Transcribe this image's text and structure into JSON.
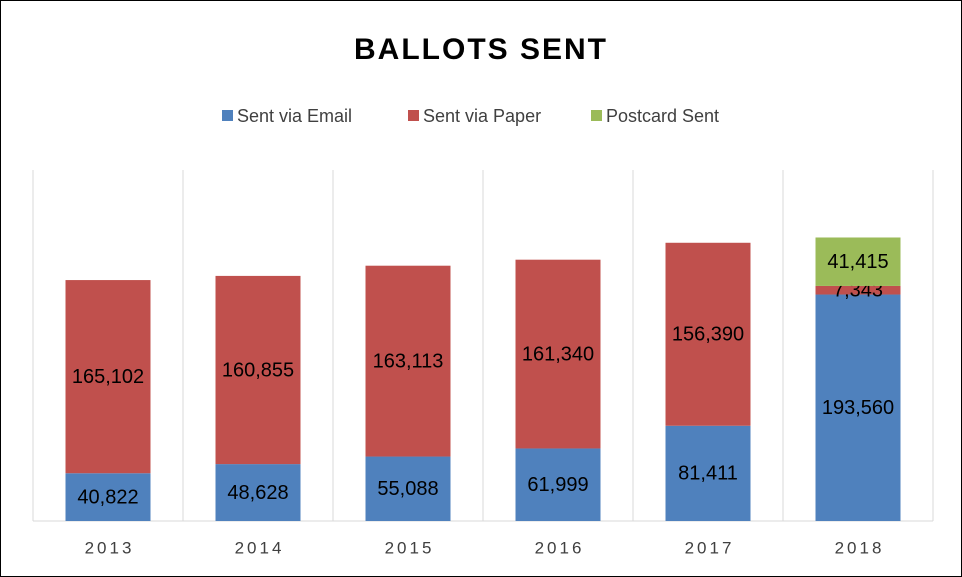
{
  "chart_data": {
    "type": "stacked_bar",
    "title": "BALLOTS SENT",
    "categories": [
      "2013",
      "2014",
      "2015",
      "2016",
      "2017",
      "2018"
    ],
    "series": [
      {
        "name": "Sent via Email",
        "color": "#4f81bd",
        "values": [
          40822,
          48628,
          55088,
          61999,
          81411,
          193560
        ],
        "value_labels": [
          "40,822",
          "48,628",
          "55,088",
          "61,999",
          "81,411",
          "193,560"
        ]
      },
      {
        "name": "Sent via Paper",
        "color": "#c0504d",
        "values": [
          165102,
          160855,
          163113,
          161340,
          156390,
          7343
        ],
        "value_labels": [
          "165,102",
          "160,855",
          "163,113",
          "161,340",
          "156,390",
          "7,343"
        ]
      },
      {
        "name": "Postcard Sent",
        "color": "#9bbb59",
        "values": [
          null,
          null,
          null,
          null,
          null,
          41415
        ],
        "value_labels": [
          null,
          null,
          null,
          null,
          null,
          "41,415"
        ]
      }
    ],
    "ylim": [
      0,
      300000
    ],
    "grid": true,
    "legend": "top"
  }
}
